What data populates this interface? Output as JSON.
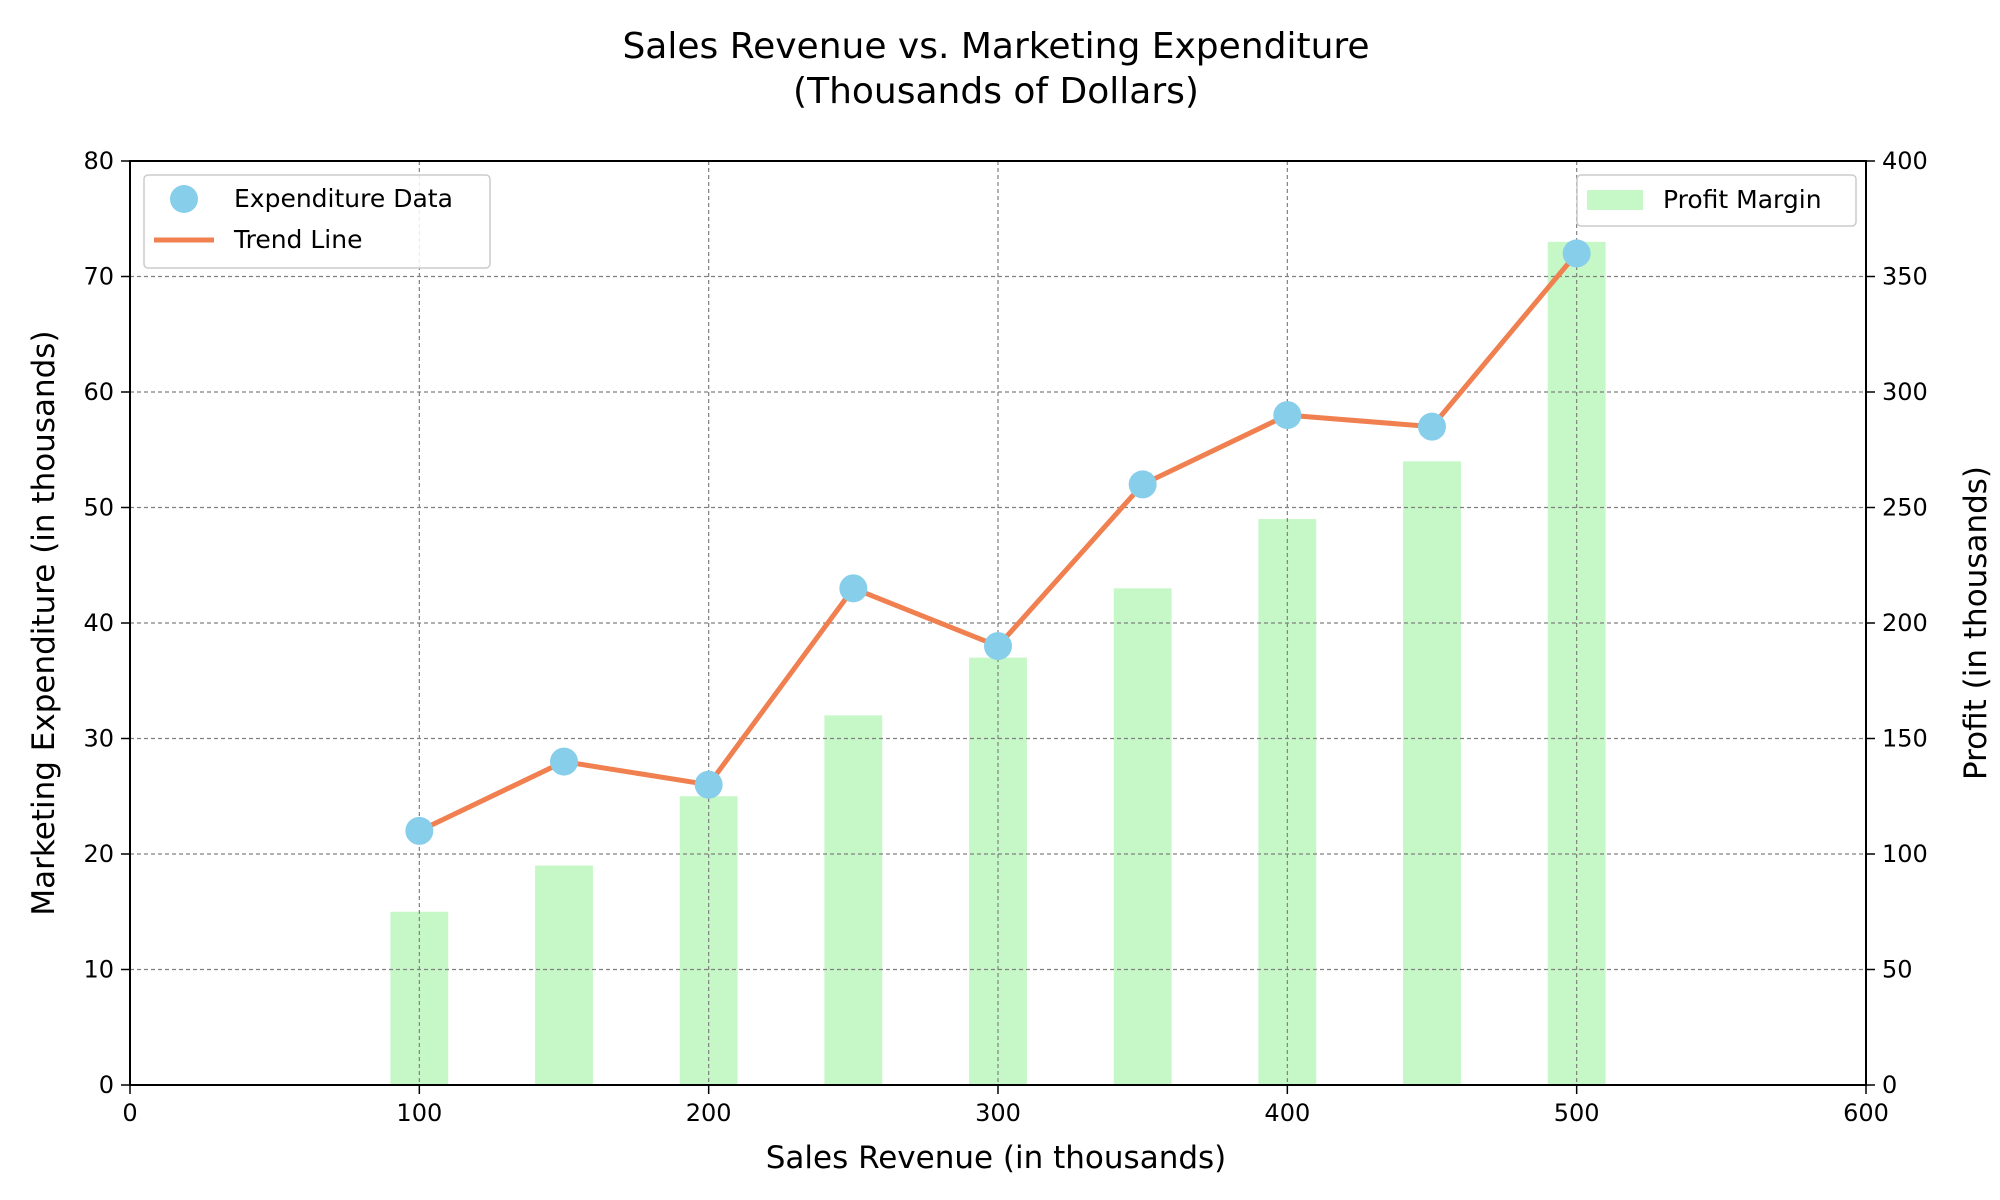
{
  "chart_data": {
    "type": "bar+scatter+line",
    "title_lines": [
      "Sales Revenue vs. Marketing Expenditure",
      "(Thousands of Dollars)"
    ],
    "xlabel": "Sales Revenue (in thousands)",
    "ylabel": "Marketing Expenditure (in thousands)",
    "y2label": "Profit (in thousands)",
    "xlim": [
      0,
      600
    ],
    "ylim": [
      0,
      80
    ],
    "y2lim": [
      0,
      400
    ],
    "xticks": [
      0,
      100,
      200,
      300,
      400,
      500,
      600
    ],
    "yticks": [
      0,
      10,
      20,
      30,
      40,
      50,
      60,
      70,
      80
    ],
    "y2ticks": [
      0,
      50,
      100,
      150,
      200,
      250,
      300,
      350,
      400
    ],
    "grid": true,
    "x": [
      100,
      150,
      200,
      250,
      300,
      350,
      400,
      450,
      500
    ],
    "series": [
      {
        "name": "Expenditure Data",
        "kind": "scatter",
        "axis": "left",
        "color": "#87ceeb",
        "values": [
          22,
          28,
          26,
          43,
          38,
          52,
          58,
          57,
          72
        ]
      },
      {
        "name": "Trend Line",
        "kind": "line",
        "axis": "left",
        "color": "#f08050",
        "values": [
          22,
          28,
          26,
          43,
          38,
          52,
          58,
          57,
          72
        ]
      },
      {
        "name": "Profit Margin",
        "kind": "bar",
        "axis": "right",
        "color": "#c6f7c6",
        "values": [
          75,
          95,
          125,
          160,
          185,
          215,
          245,
          270,
          365
        ]
      }
    ],
    "legend_left_placement": "upper-left",
    "legend_right_placement": "upper-right",
    "bar_width": 20
  }
}
